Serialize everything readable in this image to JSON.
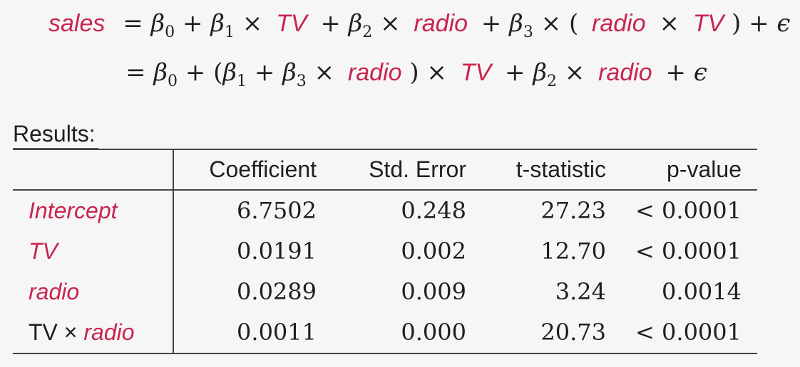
{
  "equation": {
    "line1": {
      "lhs": "sales",
      "eq": "=",
      "b0": "β",
      "b0_sub": "0",
      "plus": "+",
      "b1": "β",
      "b1_sub": "1",
      "times": "×",
      "tv": "TV",
      "b2": "β",
      "b2_sub": "2",
      "radio": "radio",
      "b3": "β",
      "b3_sub": "3",
      "lparen": "(",
      "rparen": ")",
      "eps": "ϵ"
    },
    "line2": {
      "eq": "=",
      "b0": "β",
      "b0_sub": "0",
      "plus": "+",
      "lparen": "(",
      "b1": "β",
      "b1_sub": "1",
      "b3": "β",
      "b3_sub": "3",
      "times": "×",
      "radio": "radio",
      "rparen": ")",
      "tv": "TV",
      "b2": "β",
      "b2_sub": "2",
      "eps": "ϵ"
    }
  },
  "results_label": "Results:",
  "table": {
    "headers": [
      "Coefficient",
      "Std. Error",
      "t-statistic",
      "p-value"
    ],
    "rows": [
      {
        "label_plain": "",
        "label_italic": "Intercept",
        "coef": "6.7502",
        "se": "0.248",
        "t": "27.23",
        "p": "< 0.0001"
      },
      {
        "label_plain": "",
        "label_italic": "TV",
        "coef": "0.0191",
        "se": "0.002",
        "t": "12.70",
        "p": "< 0.0001"
      },
      {
        "label_plain": "",
        "label_italic": "radio",
        "coef": "0.0289",
        "se": "0.009",
        "t": "3.24",
        "p": "0.0014"
      },
      {
        "label_plain": "TV × ",
        "label_italic": "radio",
        "coef": "0.0011",
        "se": "0.000",
        "t": "20.73",
        "p": "< 0.0001"
      }
    ]
  },
  "colors": {
    "accent": "#c8254e",
    "text": "#1f1f1f",
    "background": "#f6f6f6"
  }
}
